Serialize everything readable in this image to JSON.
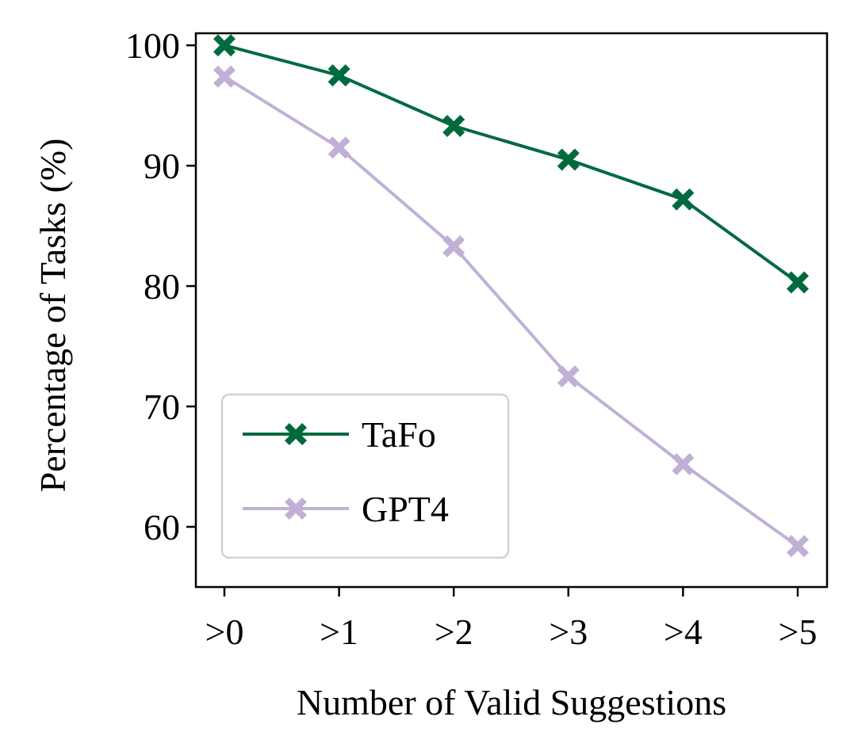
{
  "chart_data": {
    "type": "line",
    "title": "",
    "xlabel": "Number of Valid Suggestions",
    "ylabel": "Percentage of Tasks (%)",
    "categories": [
      ">0",
      ">1",
      ">2",
      ">3",
      ">4",
      ">5"
    ],
    "ylim": [
      55,
      101
    ],
    "yticks": [
      60,
      70,
      80,
      90,
      100
    ],
    "grid": false,
    "legend_position": "lower-left",
    "series": [
      {
        "name": "TaFo",
        "values": [
          100.0,
          97.5,
          93.3,
          90.5,
          87.2,
          80.3
        ],
        "color": "#006a3f",
        "marker": "X"
      },
      {
        "name": "GPT4",
        "values": [
          97.4,
          91.5,
          83.3,
          72.5,
          65.2,
          58.4
        ],
        "color": "#c0b1d4",
        "marker": "X"
      }
    ]
  }
}
